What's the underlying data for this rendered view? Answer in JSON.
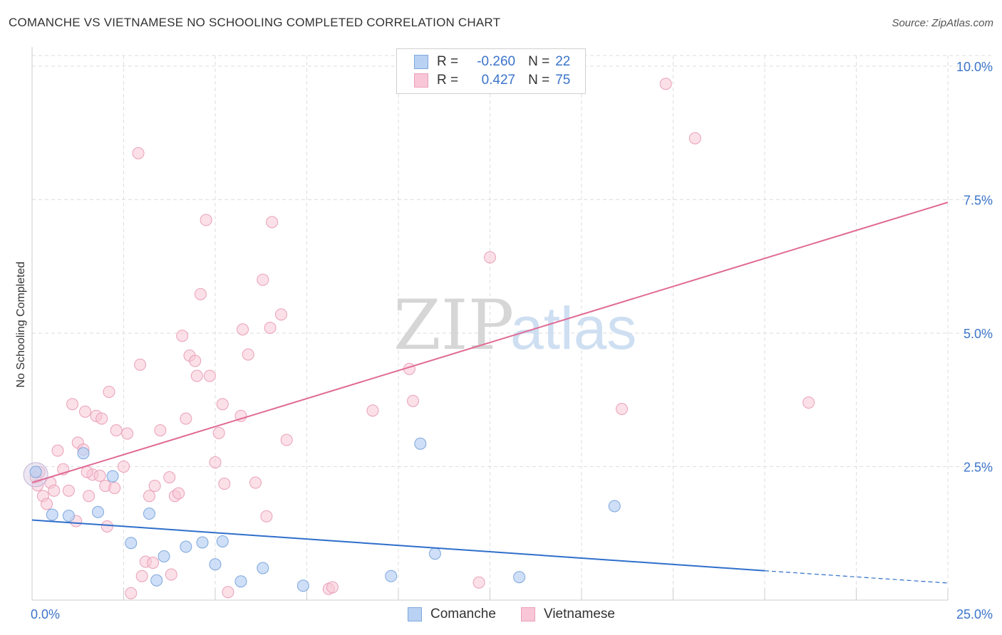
{
  "header": {
    "title": "COMANCHE VS VIETNAMESE NO SCHOOLING COMPLETED CORRELATION CHART",
    "source": "Source: ZipAtlas.com"
  },
  "legend_top": {
    "rows": [
      {
        "r_label": "R =",
        "r_value": "-0.260",
        "n_label": "N =",
        "n_value": "22"
      },
      {
        "r_label": "R =",
        "r_value": "0.427",
        "n_label": "N =",
        "n_value": "75"
      }
    ]
  },
  "legend_bottom": {
    "items": [
      "Comanche",
      "Vietnamese"
    ]
  },
  "watermark": {
    "zip": "ZIP",
    "atlas": "atlas"
  },
  "colors": {
    "comanche_fill": "#b9d1f3",
    "comanche_stroke": "#7ea7dd",
    "comanche_line": "#2f6fcb",
    "vietnamese_fill": "#f8c6d6",
    "vietnamese_stroke": "#eaa0b9",
    "vietnamese_line": "#e06a95",
    "tick_text": "#3b74c9",
    "grid": "#dedede"
  },
  "chart_data": {
    "type": "scatter",
    "title": "COMANCHE VS VIETNAMESE NO SCHOOLING COMPLETED CORRELATION CHART",
    "xlabel": "",
    "ylabel": "No Schooling Completed",
    "xlim": [
      0,
      25
    ],
    "ylim": [
      0,
      10.2
    ],
    "x_tick_labels": [
      "0.0%",
      "25.0%"
    ],
    "y_ticks": [
      2.5,
      5.0,
      7.5,
      10.0
    ],
    "y_tick_labels": [
      "2.5%",
      "5.0%",
      "7.5%",
      "10.0%"
    ],
    "grid": true,
    "series": [
      {
        "name": "Comanche",
        "R": -0.26,
        "N": 22,
        "trend": {
          "x0": 0,
          "y0": 1.5,
          "x1": 20,
          "y1": 0.55,
          "dash_to_x": 25,
          "dash_to_y": 0.32
        },
        "points": [
          [
            0.1,
            2.4
          ],
          [
            0.55,
            1.6
          ],
          [
            1.0,
            1.58
          ],
          [
            1.4,
            2.75
          ],
          [
            1.8,
            1.65
          ],
          [
            2.2,
            2.32
          ],
          [
            2.7,
            1.07
          ],
          [
            3.2,
            1.62
          ],
          [
            3.4,
            0.37
          ],
          [
            3.6,
            0.82
          ],
          [
            4.2,
            1.0
          ],
          [
            4.65,
            1.08
          ],
          [
            5.0,
            0.67
          ],
          [
            5.2,
            1.1
          ],
          [
            5.7,
            0.35
          ],
          [
            6.3,
            0.6
          ],
          [
            7.4,
            0.27
          ],
          [
            9.8,
            0.45
          ],
          [
            10.6,
            2.93
          ],
          [
            11.0,
            0.87
          ],
          [
            13.3,
            0.43
          ],
          [
            15.9,
            1.76
          ]
        ]
      },
      {
        "name": "Vietnamese",
        "R": 0.427,
        "N": 75,
        "trend": {
          "x0": 0,
          "y0": 2.2,
          "x1": 25,
          "y1": 7.45
        },
        "points": [
          [
            0.1,
            2.3
          ],
          [
            0.2,
            2.4
          ],
          [
            0.3,
            1.95
          ],
          [
            0.4,
            1.8
          ],
          [
            0.5,
            2.2
          ],
          [
            0.6,
            2.05
          ],
          [
            0.7,
            2.8
          ],
          [
            0.85,
            2.45
          ],
          [
            1.0,
            2.05
          ],
          [
            1.1,
            3.67
          ],
          [
            1.2,
            1.48
          ],
          [
            1.25,
            2.95
          ],
          [
            1.4,
            2.82
          ],
          [
            1.45,
            3.53
          ],
          [
            1.55,
            1.95
          ],
          [
            1.65,
            2.35
          ],
          [
            1.75,
            3.45
          ],
          [
            1.85,
            2.33
          ],
          [
            1.9,
            3.4
          ],
          [
            2.0,
            2.14
          ],
          [
            2.05,
            1.38
          ],
          [
            2.1,
            3.9
          ],
          [
            2.25,
            2.1
          ],
          [
            2.3,
            3.18
          ],
          [
            2.5,
            2.5
          ],
          [
            2.6,
            3.12
          ],
          [
            2.7,
            0.13
          ],
          [
            2.9,
            8.37
          ],
          [
            2.95,
            4.41
          ],
          [
            3.0,
            0.45
          ],
          [
            3.1,
            0.72
          ],
          [
            3.2,
            1.95
          ],
          [
            3.3,
            0.7
          ],
          [
            3.35,
            2.14
          ],
          [
            3.5,
            3.18
          ],
          [
            3.75,
            2.3
          ],
          [
            3.8,
            0.48
          ],
          [
            3.9,
            1.95
          ],
          [
            4.1,
            4.95
          ],
          [
            4.2,
            3.4
          ],
          [
            4.3,
            4.58
          ],
          [
            4.45,
            4.48
          ],
          [
            4.5,
            4.2
          ],
          [
            4.6,
            5.73
          ],
          [
            4.75,
            7.12
          ],
          [
            4.85,
            4.2
          ],
          [
            5.0,
            2.58
          ],
          [
            5.1,
            3.13
          ],
          [
            5.2,
            3.67
          ],
          [
            5.25,
            2.18
          ],
          [
            5.35,
            0.15
          ],
          [
            5.7,
            3.45
          ],
          [
            5.75,
            5.07
          ],
          [
            5.9,
            4.6
          ],
          [
            6.1,
            2.2
          ],
          [
            6.3,
            6.0
          ],
          [
            6.4,
            1.57
          ],
          [
            6.5,
            5.1
          ],
          [
            6.55,
            7.08
          ],
          [
            6.8,
            5.35
          ],
          [
            6.95,
            3.0
          ],
          [
            8.1,
            0.21
          ],
          [
            8.2,
            0.24
          ],
          [
            9.3,
            3.55
          ],
          [
            10.3,
            4.33
          ],
          [
            10.4,
            3.73
          ],
          [
            12.2,
            0.33
          ],
          [
            12.5,
            6.42
          ],
          [
            16.1,
            3.58
          ],
          [
            17.3,
            9.67
          ],
          [
            18.1,
            8.65
          ],
          [
            21.2,
            3.7
          ],
          [
            0.15,
            2.15
          ],
          [
            1.5,
            2.4
          ],
          [
            4.0,
            2.0
          ]
        ]
      }
    ]
  }
}
